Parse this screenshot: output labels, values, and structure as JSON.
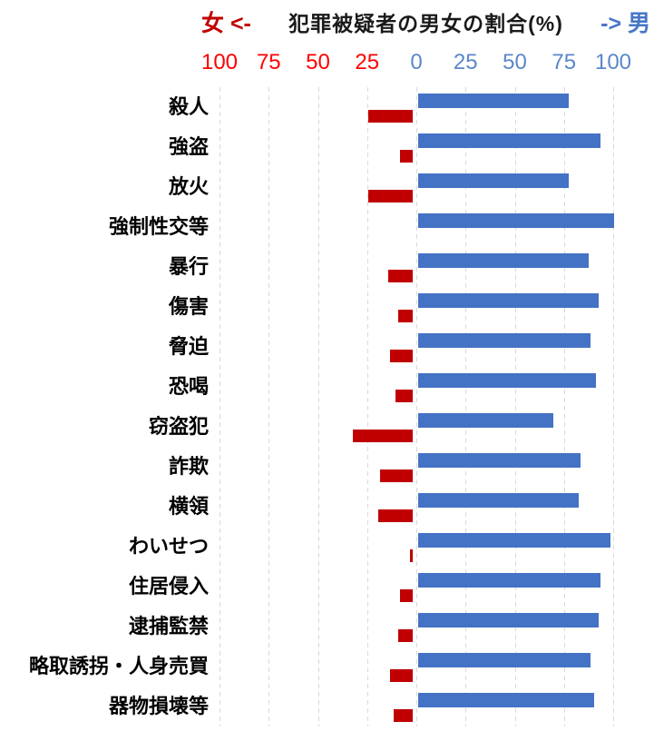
{
  "title": {
    "female_label": "女 <-",
    "main": "犯罪被疑者の男女の割合(%)",
    "male_label": "-> 男"
  },
  "colors": {
    "female_bar": "#C00000",
    "male_bar": "#4472C4",
    "female_axis_text": "#FF0000",
    "male_axis_text": "#5B87C9",
    "female_title_text": "#C00000",
    "male_title_text": "#4776C6",
    "gridline": "#D9D9D9"
  },
  "chart_data": {
    "type": "bar",
    "orientation": "horizontal-diverging",
    "title": "犯罪被疑者の男女の割合(%)",
    "legend_position": "inline-in-title",
    "grid": "vertical-dashed",
    "axis": {
      "unit": "%",
      "female_range": [
        0,
        100
      ],
      "male_range": [
        0,
        100
      ],
      "ticks": [
        {
          "label": "100",
          "value": -100,
          "side": "female"
        },
        {
          "label": "75",
          "value": -75,
          "side": "female"
        },
        {
          "label": "50",
          "value": -50,
          "side": "female"
        },
        {
          "label": "25",
          "value": -25,
          "side": "female"
        },
        {
          "label": "0",
          "value": 0,
          "side": "male"
        },
        {
          "label": "25",
          "value": 25,
          "side": "male"
        },
        {
          "label": "50",
          "value": 50,
          "side": "male"
        },
        {
          "label": "75",
          "value": 75,
          "side": "male"
        },
        {
          "label": "100",
          "value": 100,
          "side": "male"
        }
      ]
    },
    "categories": [
      "殺人",
      "強盗",
      "放火",
      "強制性交等",
      "暴行",
      "傷害",
      "脅迫",
      "恐喝",
      "窃盗犯",
      "詐欺",
      "横領",
      "わいせつ",
      "住居侵入",
      "逮捕監禁",
      "略取誘拐・人身売買",
      "器物損壊等"
    ],
    "series": [
      {
        "name": "女",
        "direction": "left",
        "color": "#C00000",
        "values": [
          23,
          7,
          23,
          0,
          13,
          8,
          12,
          9,
          31,
          17,
          18,
          2,
          7,
          8,
          12,
          10
        ]
      },
      {
        "name": "男",
        "direction": "right",
        "color": "#4472C4",
        "values": [
          77,
          93,
          77,
          100,
          87,
          92,
          88,
          91,
          69,
          83,
          82,
          98,
          93,
          92,
          88,
          90
        ]
      }
    ]
  }
}
